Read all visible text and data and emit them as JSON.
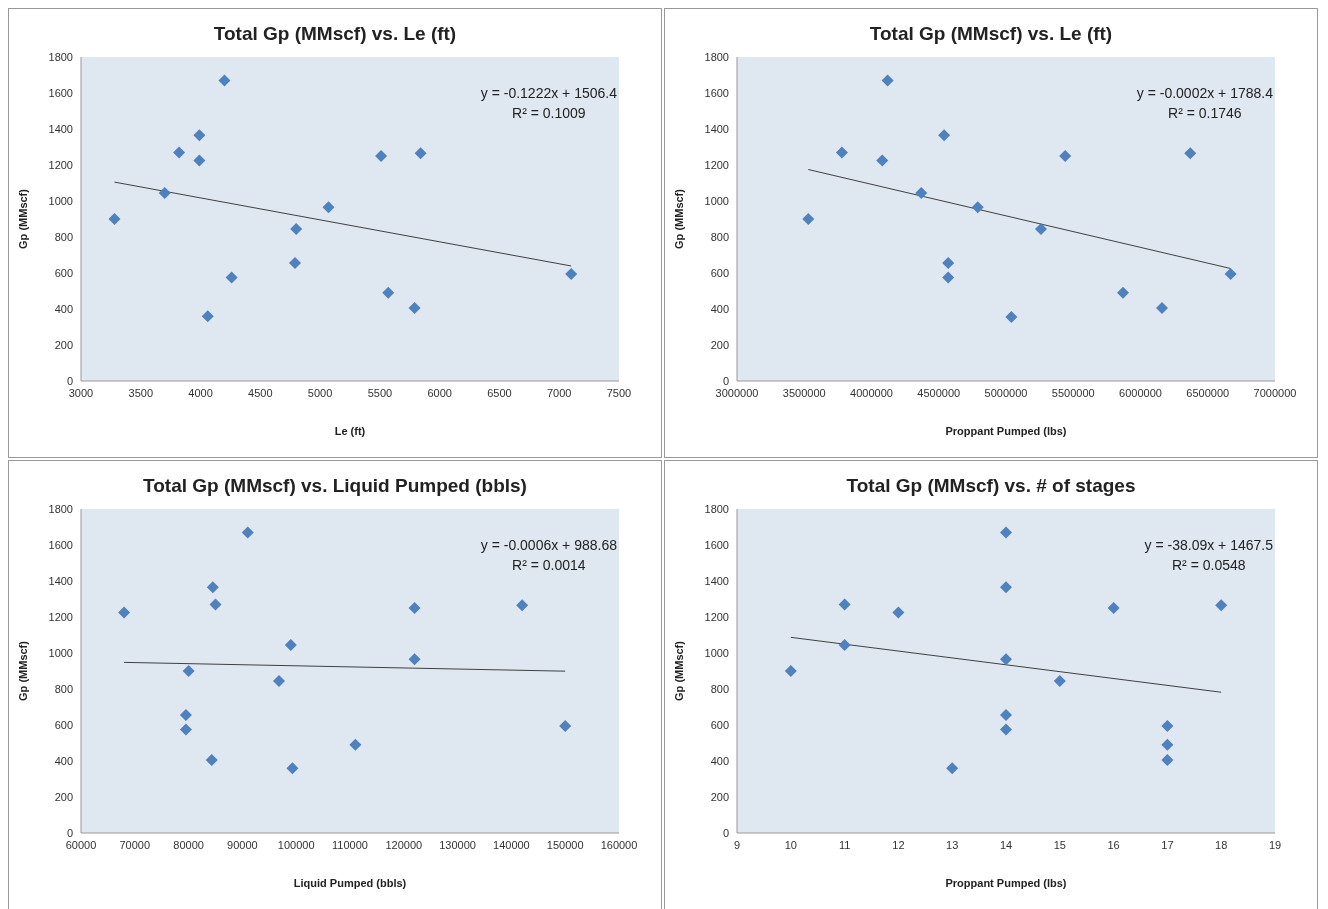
{
  "chart_data": [
    {
      "type": "scatter",
      "title": "Total Gp (MMscf) vs. Le (ft)",
      "xlabel": "Le (ft)",
      "ylabel": "Gp (MMscf)",
      "xlim": [
        3000,
        7500
      ],
      "xticks": [
        3000,
        3500,
        4000,
        4500,
        5000,
        5500,
        6000,
        6500,
        7000,
        7500
      ],
      "ylim": [
        0,
        1800
      ],
      "yticks": [
        0,
        200,
        400,
        600,
        800,
        1000,
        1200,
        1400,
        1600,
        1800
      ],
      "annotations": [
        "y = -0.1222x + 1506.4",
        "R² = 0.1009"
      ],
      "series": [
        {
          "color": "#4f81bd",
          "marker": "diamond",
          "x": [
            3280,
            3700,
            3820,
            3990,
            3990,
            4200,
            4060,
            4260,
            4790,
            4800,
            5070,
            5510,
            5570,
            5790,
            5840,
            7100
          ],
          "values": [
            900,
            1045,
            1270,
            1365,
            1225,
            1670,
            360,
            575,
            655,
            845,
            965,
            1250,
            490,
            405,
            1265,
            595
          ]
        },
        {
          "type": "line",
          "color": "#404040",
          "x": [
            3280,
            7100
          ],
          "values": [
            1105,
            639
          ]
        }
      ]
    },
    {
      "type": "scatter",
      "title": "Total Gp (MMscf) vs. Le (ft)",
      "xlabel": "Proppant Pumped (lbs)",
      "ylabel": "Gp (MMscf)",
      "xlim": [
        3000000,
        7000000
      ],
      "xticks": [
        3000000,
        3500000,
        4000000,
        4500000,
        5000000,
        5500000,
        6000000,
        6500000,
        7000000
      ],
      "ylim": [
        0,
        1800
      ],
      "yticks": [
        0,
        200,
        400,
        600,
        800,
        1000,
        1200,
        1400,
        1600,
        1800
      ],
      "annotations": [
        "y = -0.0002x + 1788.4",
        "R² = 0.1746"
      ],
      "series": [
        {
          "color": "#4f81bd",
          "marker": "diamond",
          "x": [
            3530000,
            3780000,
            4080000,
            4120000,
            4370000,
            4540000,
            4570000,
            4570000,
            4790000,
            5040000,
            5260000,
            5440000,
            5870000,
            6160000,
            6370000,
            6670000
          ],
          "values": [
            900,
            1270,
            1225,
            1670,
            1045,
            1365,
            655,
            575,
            965,
            355,
            845,
            1250,
            490,
            405,
            1265,
            595
          ]
        },
        {
          "type": "line",
          "color": "#404040",
          "x": [
            3530000,
            6670000
          ],
          "values": [
            1175,
            625
          ]
        }
      ]
    },
    {
      "type": "scatter",
      "title": "Total Gp (MMscf) vs. Liquid Pumped (bbls)",
      "xlabel": "Liquid Pumped (bbls)",
      "ylabel": "Gp (MMscf)",
      "xlim": [
        60000,
        160000
      ],
      "xticks": [
        60000,
        70000,
        80000,
        90000,
        100000,
        110000,
        120000,
        130000,
        140000,
        150000,
        160000
      ],
      "ylim": [
        0,
        1800
      ],
      "yticks": [
        0,
        200,
        400,
        600,
        800,
        1000,
        1200,
        1400,
        1600,
        1800
      ],
      "annotations": [
        "y = -0.0006x + 988.68",
        "R² = 0.0014"
      ],
      "series": [
        {
          "color": "#4f81bd",
          "marker": "diamond",
          "x": [
            68000,
            80000,
            79500,
            79500,
            84500,
            85000,
            84300,
            91000,
            96800,
            99000,
            99300,
            111000,
            122000,
            122000,
            142000,
            150000
          ],
          "values": [
            1225,
            900,
            655,
            575,
            1365,
            1270,
            405,
            1670,
            845,
            1045,
            360,
            490,
            1250,
            965,
            1265,
            595
          ]
        },
        {
          "type": "line",
          "color": "#404040",
          "x": [
            68000,
            150000
          ],
          "values": [
            948,
            899
          ]
        }
      ]
    },
    {
      "type": "scatter",
      "title": "Total Gp (MMscf) vs. # of stages",
      "xlabel": "Proppant Pumped (lbs)",
      "ylabel": "Gp (MMscf)",
      "xlim": [
        9,
        19
      ],
      "xticks": [
        9,
        10,
        11,
        12,
        13,
        14,
        15,
        16,
        17,
        18,
        19
      ],
      "ylim": [
        0,
        1800
      ],
      "yticks": [
        0,
        200,
        400,
        600,
        800,
        1000,
        1200,
        1400,
        1600,
        1800
      ],
      "annotations": [
        "y = -38.09x + 1467.5",
        "R² = 0.0548"
      ],
      "series": [
        {
          "color": "#4f81bd",
          "marker": "diamond",
          "x": [
            10,
            11,
            11,
            12,
            13,
            14,
            14,
            14,
            14,
            14,
            15,
            16,
            17,
            17,
            17,
            18
          ],
          "values": [
            900,
            1270,
            1045,
            1225,
            360,
            1670,
            1365,
            965,
            655,
            575,
            845,
            1250,
            595,
            490,
            405,
            1265
          ]
        },
        {
          "type": "line",
          "color": "#404040",
          "x": [
            10,
            18
          ],
          "values": [
            1087,
            782
          ]
        }
      ]
    }
  ]
}
